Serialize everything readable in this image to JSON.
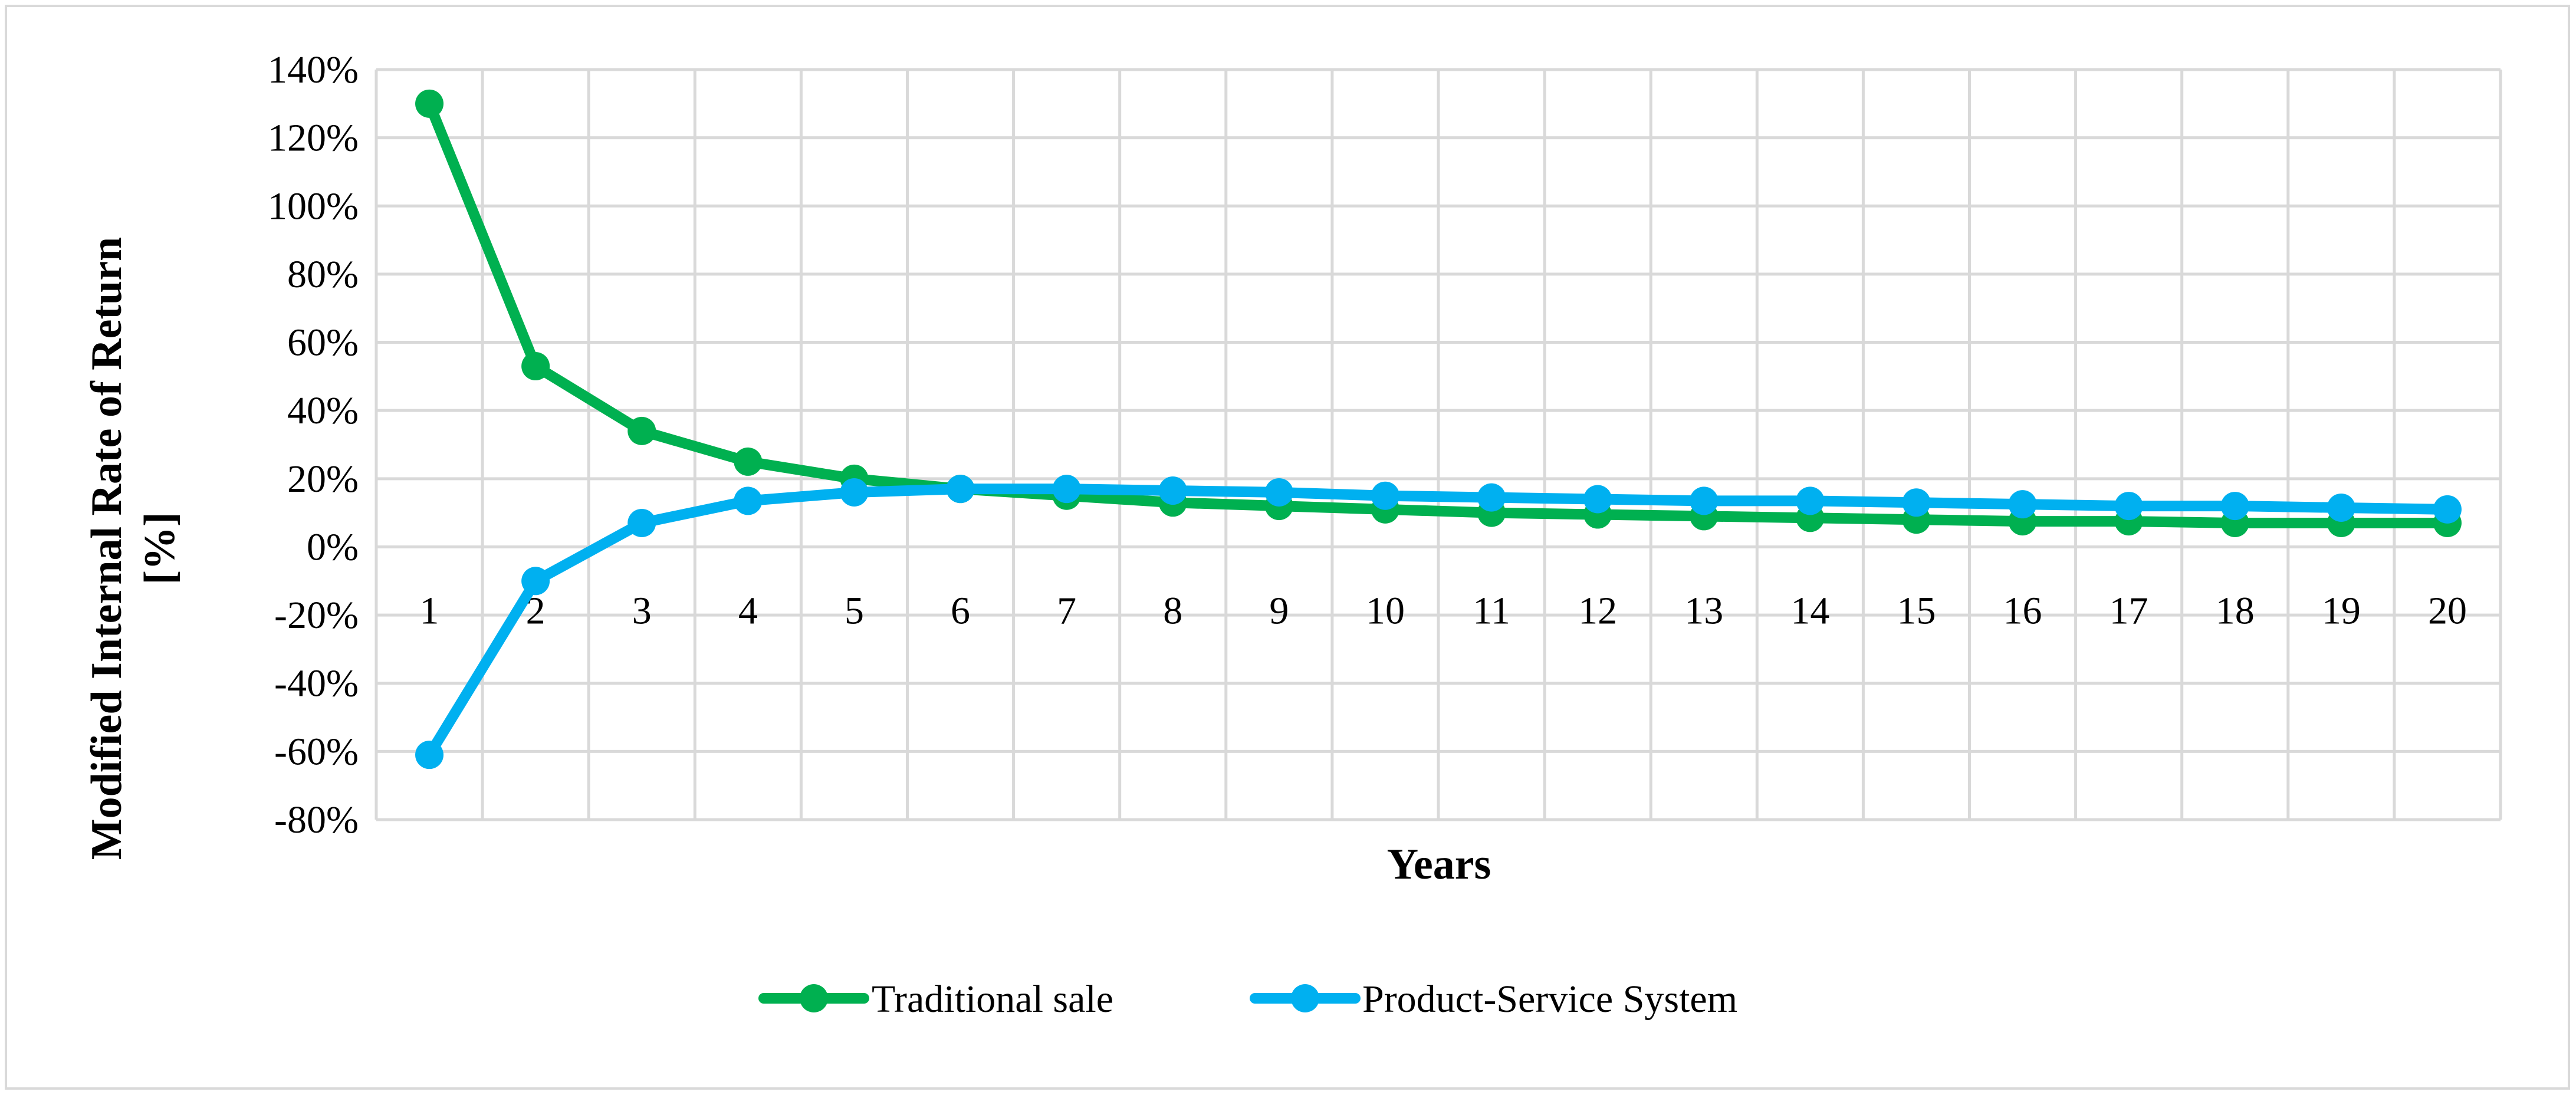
{
  "chart_data": {
    "type": "line",
    "title": "",
    "xlabel": "Years",
    "ylabel_lines": [
      "Modified  Internal Rate of Return",
      "[%]"
    ],
    "categories": [
      "1",
      "2",
      "3",
      "4",
      "5",
      "6",
      "7",
      "8",
      "9",
      "10",
      "11",
      "12",
      "13",
      "14",
      "15",
      "16",
      "17",
      "18",
      "19",
      "20"
    ],
    "ylim": [
      -80,
      140
    ],
    "ystep": 20,
    "y_tick_labels": [
      "140%",
      "120%",
      "100%",
      "80%",
      "60%",
      "40%",
      "20%",
      "0%",
      "-20%",
      "-40%",
      "-60%",
      "-80%"
    ],
    "grid": true,
    "legend_position": "bottom",
    "series": [
      {
        "name": "Traditional sale",
        "color": "#00b050",
        "values": [
          130,
          53,
          34,
          25,
          20,
          17,
          15,
          13,
          12,
          11,
          10,
          9.5,
          9,
          8.5,
          8,
          7.5,
          7.5,
          7,
          7,
          7
        ]
      },
      {
        "name": "Product-Service System",
        "color": "#00b0f0",
        "values": [
          -61,
          -10,
          7,
          13.5,
          16,
          17,
          17,
          16.5,
          16,
          15,
          14.5,
          14,
          13.5,
          13.5,
          13,
          12.5,
          12,
          12,
          11.5,
          11
        ]
      }
    ],
    "gridline_color": "#d9d9d9"
  }
}
